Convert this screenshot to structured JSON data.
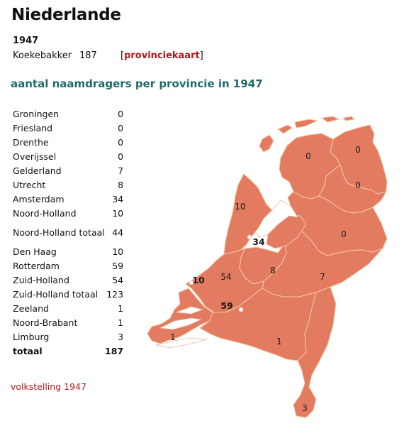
{
  "page": {
    "title": "Niederlande",
    "year": "1947",
    "surname": "Koekebakker",
    "surname_count": "187",
    "link_open": "[",
    "link_text": "provinciekaart",
    "link_close": "]",
    "subtitle": "aantal naamdragers per provincie in 1947",
    "source": "volkstelling 1947"
  },
  "table": {
    "rows": [
      {
        "name": "Groningen",
        "value": "0"
      },
      {
        "name": "Friesland",
        "value": "0"
      },
      {
        "name": "Drenthe",
        "value": "0"
      },
      {
        "name": "Overijssel",
        "value": "0"
      },
      {
        "name": "Gelderland",
        "value": "7"
      },
      {
        "name": "Utrecht",
        "value": "8"
      },
      {
        "name": "Amsterdam",
        "value": "34"
      },
      {
        "name": "Noord-Holland",
        "value": "10"
      },
      {
        "name": "Noord-Holland totaal",
        "value": "44"
      },
      {
        "name": "Den Haag",
        "value": "10"
      },
      {
        "name": "Rotterdam",
        "value": "59"
      },
      {
        "name": "Zuid-Holland",
        "value": "54"
      },
      {
        "name": "Zuid-Holland totaal",
        "value": "123"
      },
      {
        "name": "Zeeland",
        "value": "1"
      },
      {
        "name": "Noord-Brabant",
        "value": "1"
      },
      {
        "name": "Limburg",
        "value": "3"
      }
    ],
    "total": {
      "name": "totaal",
      "value": "187"
    }
  },
  "map": {
    "fill_color": "#e27b5f",
    "border_color": "#f7c9a6",
    "labels": {
      "friesland": "0",
      "groningen": "0",
      "drenthe": "0",
      "overijssel": "0",
      "noord_holland": "10",
      "amsterdam": "34",
      "utrecht": "8",
      "gelderland": "7",
      "zuid_holland": "54",
      "den_haag": "10",
      "rotterdam": "59",
      "zeeland": "1",
      "noord_brabant": "1",
      "limburg": "3"
    }
  }
}
